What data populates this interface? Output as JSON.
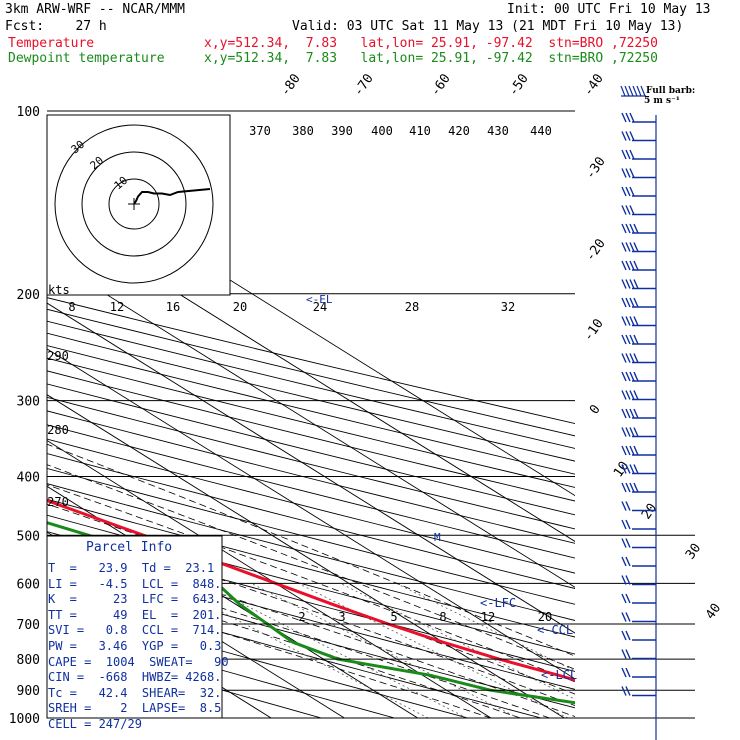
{
  "header": {
    "model": "3km ARW-WRF -- NCAR/MMM",
    "fcst": "Fcst:    27 h",
    "init": "Init: 00 UTC Fri 10 May 13",
    "valid": "Valid: 03 UTC Sat 11 May 13 (21 MDT Fri 10 May 13)",
    "temp_label": "Temperature",
    "temp_info": "x,y=512.34,  7.83   lat,lon= 25.91, -97.42  stn=BRO ,72250",
    "dew_label": "Dewpoint temperature",
    "dew_info": "x,y=512.34,  7.83   lat,lon= 25.91, -97.42  stn=BRO ,72250"
  },
  "barb_legend": {
    "line1": "Full barb:",
    "line2": "5 m s⁻¹"
  },
  "hodograph": {
    "unit": "kts",
    "rings": [
      "10",
      "20",
      "30"
    ]
  },
  "parcel_info": {
    "title": "Parcel Info",
    "rows": [
      "T  =   23.9  Td =  23.1",
      "LI =   -4.5  LCL =  848.",
      "K  =     23  LFC =  643.",
      "TT =     49  EL  =  201.",
      "SVI =   0.8  CCL =  714.",
      "PW =   3.46  YGP =   0.3",
      "CAPE =  1004  SWEAT=   90",
      "CIN =  -668  HWBZ= 4268.",
      "Tc =   42.4  SHEAR=  32.",
      "SREH =    2  LAPSE=  8.5",
      "CELL = 247/29"
    ]
  },
  "levels": {
    "lfc": "<-LFC",
    "ccl": "<-CCL",
    "lcl": "<-LCL",
    "el": "EL",
    "m": "M"
  },
  "chart_data": {
    "type": "line",
    "title": "",
    "xlabel": "",
    "ylabel": "",
    "pressure_ticks": [
      100,
      200,
      300,
      400,
      500,
      600,
      700,
      800,
      900,
      1000
    ],
    "isotherm_labels": [
      "-80",
      "-70",
      "-60",
      "-50",
      "-40",
      "-30",
      "-20",
      "-10",
      "0",
      "10",
      "20",
      "30",
      "40"
    ],
    "mixing_ratio_labels": [
      "8",
      "12",
      "16",
      "20",
      "24",
      "28",
      "32",
      "2",
      "3",
      "5",
      "8",
      "12",
      "20"
    ],
    "theta_labels": [
      "370",
      "380",
      "390",
      "400",
      "410",
      "420",
      "430",
      "440"
    ],
    "dry_adiabat_labels": [
      "290",
      "280",
      "270"
    ],
    "series": [
      {
        "name": "Temperature",
        "color": "#e8102a",
        "pressure": [
          1000,
          975,
          950,
          925,
          900,
          850,
          800,
          750,
          700,
          650,
          600,
          550,
          500,
          450,
          400,
          350,
          300,
          250,
          200,
          175,
          150,
          125,
          110,
          100
        ],
        "values": [
          23.9,
          28.0,
          27.5,
          25.0,
          22.5,
          18.5,
          14.0,
          10.0,
          6.5,
          3.2,
          0.0,
          -3.5,
          -7.5,
          -12.0,
          -17.0,
          -23.0,
          -30.0,
          -39.0,
          -50.0,
          -57.0,
          -64.0,
          -67.0,
          -68.0,
          -68.0
        ]
      },
      {
        "name": "Dewpoint temperature",
        "color": "#1a8a1a",
        "pressure": [
          1000,
          975,
          950,
          925,
          900,
          850,
          800,
          750,
          700,
          650,
          600,
          550,
          500,
          450,
          400,
          350,
          300,
          280,
          250,
          200,
          150,
          125,
          110,
          100
        ],
        "values": [
          23.1,
          18.0,
          16.0,
          11.0,
          6.0,
          1.0,
          -8.0,
          -10.5,
          -10.0,
          -9.5,
          -8.0,
          -10.5,
          -15.0,
          -21.5,
          -28.0,
          -36.0,
          -50.0,
          -57.0,
          -58.0,
          -62.0,
          -78.0,
          -82.0,
          -86.0,
          -88.0
        ]
      }
    ],
    "hodograph_points": [
      [
        0,
        0
      ],
      [
        1,
        2
      ],
      [
        2,
        5
      ],
      [
        4,
        8
      ],
      [
        7,
        8
      ],
      [
        10,
        7
      ],
      [
        14,
        7
      ],
      [
        18,
        6
      ],
      [
        22,
        8
      ],
      [
        30,
        9
      ],
      [
        38,
        10
      ]
    ]
  }
}
